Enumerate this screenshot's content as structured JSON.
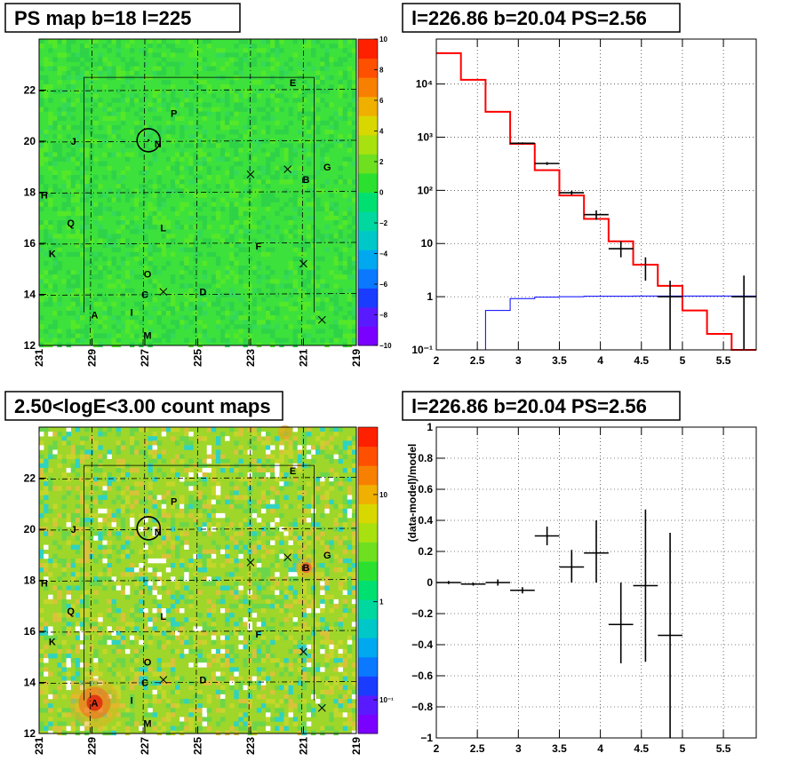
{
  "panels": [
    {
      "id": "ps-map",
      "title": "PS map b=18 l=225",
      "type": "heatmap",
      "x_ticks": [
        "231",
        "229",
        "227",
        "225",
        "223",
        "221",
        "219"
      ],
      "y_ticks": [
        "12",
        "14",
        "16",
        "18",
        "20",
        "22"
      ],
      "colorbar_ticks": [
        "10",
        "8",
        "6",
        "4",
        "2",
        "0",
        "−2",
        "−4",
        "−6",
        "−8",
        "−10"
      ],
      "colorbar_scale": "linear",
      "colorbar_range": [
        -10,
        10
      ],
      "base_color": "#3ce13c",
      "sources": [
        {
          "label": "A",
          "l": 228.9,
          "b": 13.2
        },
        {
          "label": "B",
          "l": 220.9,
          "b": 18.5
        },
        {
          "label": "C",
          "l": 227.0,
          "b": 14.0
        },
        {
          "label": "D",
          "l": 224.8,
          "b": 14.1
        },
        {
          "label": "E",
          "l": 221.4,
          "b": 22.3
        },
        {
          "label": "F",
          "l": 222.7,
          "b": 15.9
        },
        {
          "label": "G",
          "l": 220.1,
          "b": 19.0
        },
        {
          "label": "H",
          "l": 230.8,
          "b": 17.9
        },
        {
          "label": "I",
          "l": 227.5,
          "b": 13.3
        },
        {
          "label": "J",
          "l": 229.7,
          "b": 20.0
        },
        {
          "label": "K",
          "l": 230.5,
          "b": 15.6
        },
        {
          "label": "L",
          "l": 226.3,
          "b": 16.6
        },
        {
          "label": "M",
          "l": 226.9,
          "b": 12.4
        },
        {
          "label": "N",
          "l": 226.5,
          "b": 19.9
        },
        {
          "label": "O",
          "l": 226.9,
          "b": 14.8
        },
        {
          "label": "P",
          "l": 225.9,
          "b": 21.1
        },
        {
          "label": "Q",
          "l": 229.8,
          "b": 16.8
        }
      ],
      "crosses": [
        {
          "l": 223.0,
          "b": 18.7
        },
        {
          "l": 221.6,
          "b": 18.9
        },
        {
          "l": 221.0,
          "b": 15.2
        },
        {
          "l": 226.3,
          "b": 14.1
        },
        {
          "l": 220.3,
          "b": 13.0
        }
      ],
      "circle": {
        "l": 226.86,
        "b": 20.04
      }
    },
    {
      "id": "spectrum",
      "title": "l=226.86 b=20.04 PS=2.56",
      "type": "line",
      "x_ticks": [
        "2",
        "2.5",
        "3",
        "3.5",
        "4",
        "4.5",
        "5",
        "5.5"
      ],
      "y_ticks": [
        "10⁻¹",
        "1",
        "10",
        "10²",
        "10³",
        "10⁴"
      ],
      "xlim": [
        2,
        5.9
      ],
      "ylim": [
        0.1,
        70000
      ],
      "y_scale": "log",
      "grid": true
    },
    {
      "id": "count-map",
      "title": "2.50<logE<3.00 count maps",
      "type": "heatmap",
      "x_ticks": [
        "231",
        "229",
        "227",
        "225",
        "223",
        "221",
        "219"
      ],
      "y_ticks": [
        "12",
        "14",
        "16",
        "18",
        "20",
        "22"
      ],
      "colorbar_ticks": [
        "10",
        "1",
        "10⁻¹"
      ],
      "colorbar_scale": "log",
      "base_color": "#9ed62a"
    },
    {
      "id": "residual",
      "title": "l=226.86 b=20.04 PS=2.56",
      "type": "scatter",
      "ylabel": "(data-model)/model",
      "x_ticks": [
        "2",
        "2.5",
        "3",
        "3.5",
        "4",
        "4.5",
        "5",
        "5.5"
      ],
      "y_ticks": [
        "−1",
        "−0.8",
        "−0.6",
        "−0.4",
        "−0.2",
        "0",
        "0.2",
        "0.4",
        "0.6",
        "0.8",
        "1"
      ],
      "xlim": [
        2,
        5.9
      ],
      "ylim": [
        -1,
        1
      ],
      "grid": true
    }
  ],
  "chart_data": [
    {
      "type": "line",
      "title": "l=226.86 b=20.04 PS=2.56",
      "x_scale": "linear",
      "y_scale": "log",
      "xlim": [
        2,
        5.9
      ],
      "ylim": [
        0.1,
        70000
      ],
      "grid": true,
      "series": [
        {
          "style": "step",
          "color": "#ff0000",
          "bin_edges": [
            2.0,
            2.3,
            2.6,
            2.9,
            3.2,
            3.5,
            3.8,
            4.1,
            4.4,
            4.7,
            5.0,
            5.3,
            5.6,
            5.9
          ],
          "values": [
            38000,
            12000,
            3000,
            750,
            240,
            80,
            29,
            11,
            4,
            1.6,
            0.55,
            0.2,
            0.07
          ]
        },
        {
          "style": "step",
          "color": "#0000ff",
          "bin_edges": [
            2.0,
            2.3,
            2.6,
            2.9,
            3.2,
            3.5,
            3.8,
            4.1,
            4.4,
            4.7,
            5.0,
            5.3,
            5.6,
            5.9
          ],
          "values": [
            0.02,
            0.1,
            0.55,
            0.92,
            0.98,
            1.0,
            1.02,
            1.02,
            1.03,
            1.03,
            1.03,
            1.03,
            1.03
          ]
        },
        {
          "style": "errorbar",
          "color": "#000000",
          "points": [
            {
              "x": 3.05,
              "xerr": 0.15,
              "y": 770,
              "ylo": 740,
              "yhi": 800
            },
            {
              "x": 3.35,
              "xerr": 0.15,
              "y": 320,
              "ylo": 300,
              "yhi": 340
            },
            {
              "x": 3.65,
              "xerr": 0.15,
              "y": 90,
              "ylo": 82,
              "yhi": 98
            },
            {
              "x": 3.95,
              "xerr": 0.15,
              "y": 35,
              "ylo": 28,
              "yhi": 42
            },
            {
              "x": 4.25,
              "xerr": 0.15,
              "y": 8,
              "ylo": 5.5,
              "yhi": 11
            },
            {
              "x": 4.55,
              "xerr": 0.0,
              "y": 3.8,
              "ylo": 2.0,
              "yhi": 5.5
            },
            {
              "x": 4.85,
              "xerr": 0.15,
              "y": 1.0,
              "ylo": 0.1,
              "yhi": 2.0
            },
            {
              "x": 5.75,
              "xerr": 0.15,
              "y": 1.0,
              "ylo": 0.1,
              "yhi": 2.5
            }
          ]
        }
      ]
    },
    {
      "type": "scatter",
      "title": "l=226.86 b=20.04 PS=2.56",
      "ylabel": "(data-model)/model",
      "xlim": [
        2,
        5.9
      ],
      "ylim": [
        -1,
        1
      ],
      "grid": true,
      "points": [
        {
          "x": 2.15,
          "xerr": 0.15,
          "y": 0.0,
          "ylo": -0.01,
          "yhi": 0.01
        },
        {
          "x": 2.45,
          "xerr": 0.15,
          "y": -0.01,
          "ylo": -0.02,
          "yhi": 0.0
        },
        {
          "x": 2.75,
          "xerr": 0.15,
          "y": 0.0,
          "ylo": -0.02,
          "yhi": 0.02
        },
        {
          "x": 3.05,
          "xerr": 0.15,
          "y": -0.05,
          "ylo": -0.07,
          "yhi": -0.03
        },
        {
          "x": 3.35,
          "xerr": 0.15,
          "y": 0.3,
          "ylo": 0.24,
          "yhi": 0.36
        },
        {
          "x": 3.65,
          "xerr": 0.15,
          "y": 0.1,
          "ylo": 0.0,
          "yhi": 0.21
        },
        {
          "x": 3.95,
          "xerr": 0.15,
          "y": 0.19,
          "ylo": 0.0,
          "yhi": 0.4
        },
        {
          "x": 4.25,
          "xerr": 0.15,
          "y": -0.27,
          "ylo": -0.52,
          "yhi": 0.0
        },
        {
          "x": 4.55,
          "xerr": 0.15,
          "y": -0.02,
          "ylo": -0.51,
          "yhi": 0.47
        },
        {
          "x": 4.85,
          "xerr": 0.15,
          "y": -0.34,
          "ylo": -1.0,
          "yhi": 0.32
        }
      ]
    }
  ]
}
